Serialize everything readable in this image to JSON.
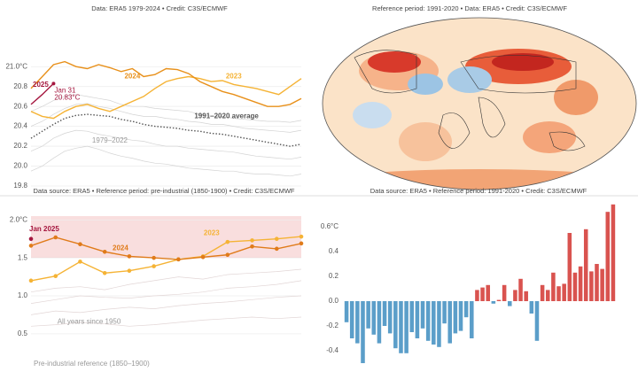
{
  "chart_data": [
    {
      "type": "line",
      "subtitle": "Data: ERA5 1979-2024 • Credit: C3S/ECMWF",
      "ylim": [
        19.8,
        21.1
      ],
      "yticks": [
        {
          "value": 21.0,
          "label": "21.0°C"
        },
        20.8,
        20.6,
        20.4,
        20.2,
        {
          "value": 20.0,
          "label": "20.0"
        },
        19.8
      ],
      "grid": true,
      "annotations": [
        "Jan 31",
        "20.83°C"
      ],
      "series": [
        {
          "name": "1979–2022",
          "color": "#d3d3d3",
          "values": [
            20.15,
            20.2,
            20.28,
            20.33,
            20.36,
            20.35,
            20.32,
            20.3,
            20.28,
            20.26,
            20.25,
            20.22,
            20.2,
            20.2,
            20.18,
            20.17,
            20.16,
            20.15,
            20.14,
            20.12,
            20.1,
            20.09,
            20.08,
            20.07,
            20.09
          ]
        },
        {
          "color": "#d3d3d3",
          "values": [
            20.4,
            20.45,
            20.52,
            20.58,
            20.62,
            20.63,
            20.6,
            20.58,
            20.55,
            20.52,
            20.5,
            20.5,
            20.48,
            20.47,
            20.45,
            20.44,
            20.42,
            20.42,
            20.4,
            20.38,
            20.37,
            20.36,
            20.35,
            20.34,
            20.36
          ]
        },
        {
          "color": "#d3d3d3",
          "values": [
            19.95,
            20.0,
            20.08,
            20.15,
            20.18,
            20.2,
            20.17,
            20.13,
            20.1,
            20.08,
            20.05,
            20.03,
            20.02,
            20.0,
            19.98,
            19.97,
            19.96,
            19.95,
            19.95,
            19.93,
            19.92,
            19.92,
            19.91,
            19.9,
            19.92
          ]
        },
        {
          "color": "#d3d3d3",
          "values": [
            20.55,
            20.6,
            20.66,
            20.7,
            20.72,
            20.7,
            20.68,
            20.66,
            20.62,
            20.6,
            20.6,
            20.58,
            20.57,
            20.56,
            20.55,
            20.52,
            20.5,
            20.5,
            20.48,
            20.47,
            20.46,
            20.45,
            20.45,
            20.44,
            20.46
          ]
        },
        {
          "name": "1991–2020 average",
          "color": "#555555",
          "style": "dotted",
          "values": [
            20.28,
            20.35,
            20.42,
            20.48,
            20.51,
            20.52,
            20.51,
            20.5,
            20.47,
            20.45,
            20.42,
            20.4,
            20.39,
            20.38,
            20.36,
            20.35,
            20.33,
            20.32,
            20.3,
            20.28,
            20.26,
            20.24,
            20.22,
            20.2,
            20.22
          ]
        },
        {
          "name": "2023",
          "color": "#f5b335",
          "values": [
            20.55,
            20.5,
            20.48,
            20.55,
            20.6,
            20.62,
            20.58,
            20.55,
            20.6,
            20.65,
            20.7,
            20.78,
            20.85,
            20.88,
            20.9,
            20.88,
            20.85,
            20.86,
            20.82,
            20.8,
            20.78,
            20.75,
            20.72,
            20.8,
            20.88
          ]
        },
        {
          "name": "2024",
          "color": "#e8901a",
          "values": [
            20.78,
            20.9,
            21.02,
            21.05,
            21.0,
            20.98,
            21.02,
            20.99,
            20.95,
            20.98,
            20.9,
            20.92,
            20.98,
            20.97,
            20.93,
            20.85,
            20.8,
            20.75,
            20.72,
            20.68,
            20.64,
            20.6,
            20.6,
            20.62,
            20.68
          ]
        },
        {
          "name": "2025",
          "color": "#a5173f",
          "values": [
            20.62,
            20.72,
            20.83,
            null,
            null,
            null,
            null,
            null,
            null,
            null,
            null,
            null,
            null,
            null,
            null,
            null,
            null,
            null,
            null,
            null,
            null,
            null,
            null,
            null,
            null
          ]
        }
      ]
    },
    {
      "type": "map",
      "subtitle": "Reference period: 1991-2020 • Data: ERA5 • Credit: C3S/ECMWF"
    },
    {
      "type": "line",
      "subtitle": "Data source: ERA5 • Reference period: pre-industrial (1850-1900) • Credit: C3S/ECMWF",
      "ylim": [
        0.3,
        2.05
      ],
      "yticks": [
        {
          "value": 2.0,
          "label": "2.0°C"
        },
        1.5,
        {
          "value": 1.0,
          "label": "1.0"
        },
        0.5
      ],
      "grid": true,
      "markers": true,
      "band": [
        1.5,
        2.05
      ],
      "band_color": "#f9dede",
      "annotations": [
        "Pre-industrial reference (1850–1900)"
      ],
      "series": [
        {
          "name": "All years since 1950",
          "color": "#e2d6d6",
          "values": [
            0.6,
            0.62,
            0.65,
            0.63,
            0.6,
            0.62,
            0.65,
            0.68,
            0.7,
            0.72,
            0.7,
            0.72
          ]
        },
        {
          "color": "#e2d6d6",
          "values": [
            0.75,
            0.8,
            0.78,
            0.82,
            0.85,
            0.83,
            0.87,
            0.9,
            0.92,
            0.95,
            0.98,
            1.0
          ]
        },
        {
          "color": "#e2d6d6",
          "values": [
            0.9,
            0.95,
            1.0,
            0.98,
            0.97,
            1.0,
            1.02,
            1.05,
            1.1,
            1.12,
            1.15,
            1.2
          ]
        },
        {
          "color": "#e2d6d6",
          "values": [
            1.05,
            1.1,
            1.12,
            1.08,
            1.15,
            1.2,
            1.25,
            1.22,
            1.28,
            1.3,
            1.32,
            1.35
          ]
        },
        {
          "name": "2023",
          "color": "#f5b335",
          "values": [
            1.2,
            1.26,
            1.45,
            1.3,
            1.33,
            1.39,
            1.48,
            1.52,
            1.71,
            1.73,
            1.75,
            1.78
          ]
        },
        {
          "name": "2024",
          "color": "#e07b1a",
          "values": [
            1.66,
            1.77,
            1.68,
            1.58,
            1.52,
            1.5,
            1.48,
            1.51,
            1.54,
            1.65,
            1.62,
            1.69
          ]
        },
        {
          "name": "Jan 2025",
          "color": "#a5173f",
          "values": [
            1.75,
            null,
            null,
            null,
            null,
            null,
            null,
            null,
            null,
            null,
            null,
            null
          ]
        }
      ]
    },
    {
      "type": "bar",
      "subtitle": "Data source: ERA5 • Reference period: 1991-2020 • Credit: C3S/ECMWF",
      "ylim": [
        -0.5,
        0.8
      ],
      "yticks": [
        {
          "value": 0.6,
          "label": "0.6°C"
        },
        0.4,
        0.2,
        {
          "value": 0,
          "label": "0.0"
        },
        -0.2,
        -0.4
      ],
      "positive_color": "#d9534f",
      "negative_color": "#5b9ec9",
      "values": [
        -0.17,
        -0.3,
        -0.34,
        -0.5,
        -0.22,
        -0.27,
        -0.34,
        -0.2,
        -0.26,
        -0.38,
        -0.42,
        -0.42,
        -0.25,
        -0.3,
        -0.22,
        -0.32,
        -0.35,
        -0.37,
        -0.18,
        -0.34,
        -0.26,
        -0.24,
        -0.13,
        -0.3,
        0.09,
        0.11,
        0.13,
        -0.02,
        0.01,
        0.13,
        -0.04,
        0.09,
        0.18,
        0.08,
        -0.1,
        -0.32,
        0.13,
        0.09,
        0.23,
        0.12,
        0.14,
        0.55,
        0.23,
        0.28,
        0.58,
        0.24,
        0.3,
        0.26,
        0.72,
        0.78
      ]
    }
  ]
}
